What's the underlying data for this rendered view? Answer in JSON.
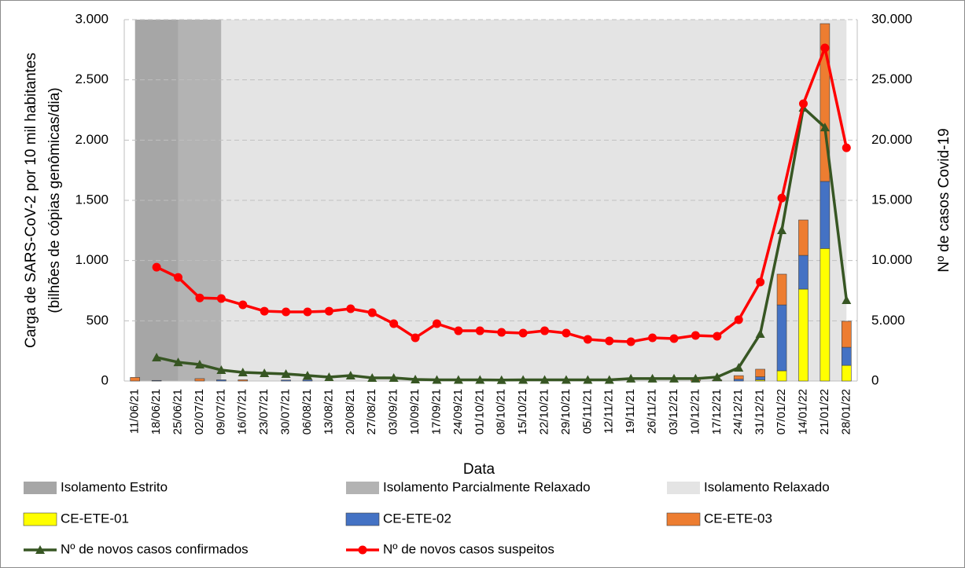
{
  "chart_data": {
    "type": "bar",
    "x_label": "Data",
    "y_label": [
      "Carga de SARS-CoV-2 por 10 mil habitantes",
      "(bilhões de cópias genômicas/dia)"
    ],
    "y2_label": "Nº de casos Covid-19",
    "categories": [
      "11/06/21",
      "18/06/21",
      "25/06/21",
      "02/07/21",
      "09/07/21",
      "16/07/21",
      "23/07/21",
      "30/07/21",
      "06/08/21",
      "13/08/21",
      "20/08/21",
      "27/08/21",
      "03/09/21",
      "10/09/21",
      "17/09/21",
      "24/09/21",
      "01/10/21",
      "08/10/21",
      "15/10/21",
      "22/10/21",
      "29/10/21",
      "05/11/21",
      "12/11/21",
      "19/11/21",
      "26/11/21",
      "03/12/21",
      "10/12/21",
      "17/12/21",
      "24/12/21",
      "31/12/21",
      "07/01/22",
      "14/01/22",
      "21/01/22",
      "28/01/22"
    ],
    "regions": [
      {
        "name": "Isolamento Estrito",
        "color": "#a6a6a6",
        "start": "11/06/21",
        "end": "25/06/21"
      },
      {
        "name": "Isolamento Parcialmente Relaxado",
        "color": "#b3b3b3",
        "start": "25/06/21",
        "end": "09/07/21"
      },
      {
        "name": "Isolamento Relaxado",
        "color": "#e4e4e4",
        "start": "09/07/21",
        "end": "28/01/22"
      }
    ],
    "series": [
      {
        "name": "CE-ETE-01",
        "type": "bar",
        "color": "#ffff00",
        "values": [
          0,
          0,
          0,
          0,
          0,
          0,
          0,
          0,
          0,
          0,
          0,
          0,
          0,
          0,
          0,
          0,
          0,
          0,
          0,
          0,
          0,
          0,
          0,
          0,
          0,
          0,
          0,
          0,
          0,
          10,
          85,
          763,
          1100,
          130
        ]
      },
      {
        "name": "CE-ETE-02",
        "type": "bar",
        "color": "#4472c4",
        "values": [
          0,
          5,
          0,
          0,
          10,
          0,
          0,
          8,
          10,
          0,
          0,
          0,
          0,
          0,
          0,
          0,
          0,
          0,
          0,
          0,
          0,
          0,
          0,
          0,
          0,
          0,
          0,
          0,
          15,
          25,
          547,
          280,
          557,
          150
        ]
      },
      {
        "name": "CE-ETE-03",
        "type": "bar",
        "color": "#ed7d31",
        "values": [
          30,
          0,
          0,
          20,
          0,
          10,
          0,
          0,
          0,
          0,
          0,
          0,
          0,
          0,
          0,
          0,
          0,
          0,
          0,
          0,
          0,
          0,
          0,
          0,
          0,
          0,
          25,
          10,
          30,
          63,
          255,
          294,
          1310,
          216
        ]
      },
      {
        "name": "Nº de novos casos confirmados",
        "type": "line",
        "axis": "y2",
        "marker": "triangle",
        "color": "#375623",
        "values": [
          null,
          1960,
          1560,
          1370,
          910,
          720,
          650,
          590,
          460,
          330,
          460,
          260,
          260,
          130,
          100,
          100,
          100,
          80,
          100,
          100,
          100,
          100,
          100,
          200,
          200,
          200,
          200,
          330,
          1110,
          3910,
          12520,
          22690,
          21060,
          6720
        ]
      },
      {
        "name": "Nº de novos casos suspeitos",
        "type": "line",
        "axis": "y2",
        "marker": "circle",
        "color": "#ff0000",
        "values": [
          null,
          9450,
          8600,
          6900,
          6850,
          6330,
          5800,
          5740,
          5740,
          5800,
          6000,
          5670,
          4760,
          3590,
          4760,
          4170,
          4170,
          4040,
          3980,
          4170,
          3980,
          3460,
          3330,
          3260,
          3590,
          3520,
          3780,
          3720,
          5090,
          8220,
          15190,
          23020,
          27650,
          19360
        ]
      }
    ],
    "ylim": [
      0,
      3000
    ],
    "yticks": [
      0,
      500,
      {
        "value": 1000,
        "label": "1.000"
      },
      {
        "value": 1500,
        "label": "1.500"
      },
      {
        "value": 2000,
        "label": "2.000"
      },
      {
        "value": 2500,
        "label": "2.500"
      },
      {
        "value": 3000,
        "label": "3.000"
      }
    ],
    "y2lim": [
      0,
      30000
    ],
    "y2ticks": [
      0,
      {
        "value": 5000,
        "label": "5.000"
      },
      {
        "value": 10000,
        "label": "10.000"
      },
      {
        "value": 15000,
        "label": "15.000"
      },
      {
        "value": 20000,
        "label": "20.000"
      },
      {
        "value": 25000,
        "label": "25.000"
      },
      {
        "value": 30000,
        "label": "30.000"
      }
    ],
    "grid": true
  }
}
